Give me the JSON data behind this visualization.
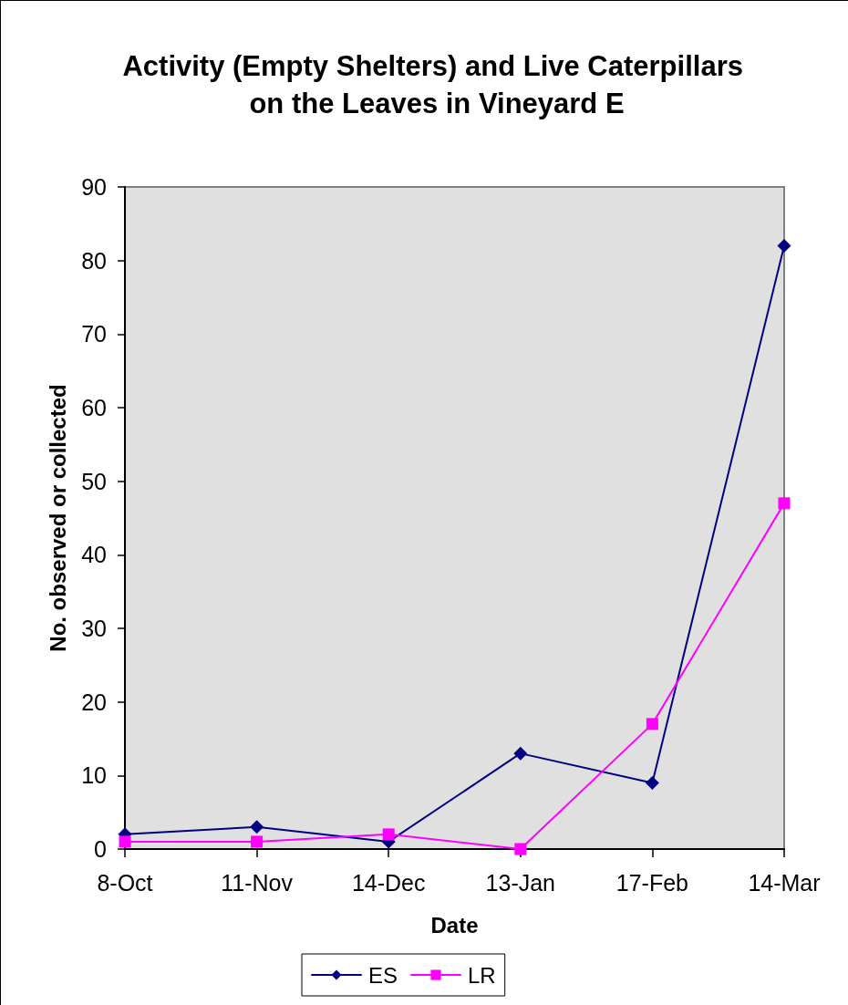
{
  "chart_data": {
    "type": "line",
    "title": "Activity (Empty Shelters) and Live Caterpillars on the Leaves in Vineyard E",
    "xlabel": "Date",
    "ylabel": "No. observed or collected",
    "categories": [
      "8-Oct",
      "11-Nov",
      "14-Dec",
      "13-Jan",
      "17-Feb",
      "14-Mar"
    ],
    "series": [
      {
        "name": "ES",
        "color": "#000080",
        "marker": "diamond",
        "values": [
          2,
          3,
          1,
          13,
          9,
          82
        ]
      },
      {
        "name": "LR",
        "color": "#ff00ff",
        "marker": "square",
        "values": [
          1,
          1,
          2,
          0,
          17,
          47
        ]
      }
    ],
    "ylim": [
      0,
      90
    ],
    "yticks": [
      0,
      10,
      20,
      30,
      40,
      50,
      60,
      70,
      80,
      90
    ],
    "grid": false,
    "legend": "bottom",
    "line_style": "solid"
  }
}
